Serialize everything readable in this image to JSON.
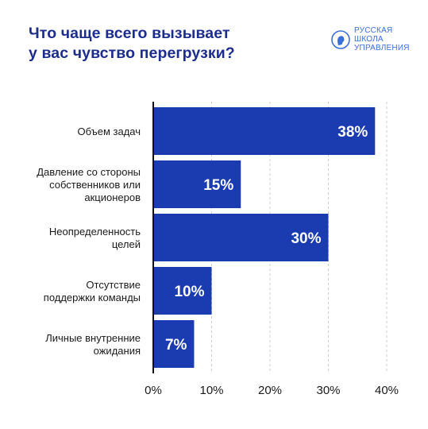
{
  "header": {
    "title_line1": "Что чаще всего вызывает",
    "title_line2": "у вас чувство перегрузки?"
  },
  "brand": {
    "line1": "РУССКАЯ",
    "line2": "ШКОЛА",
    "line3": "УПРАВЛЕНИЯ",
    "logo_icon": "profile-head-icon"
  },
  "colors": {
    "bar": "#1a3cb0",
    "title": "#1c2d8c",
    "grid": "#cfcfcf",
    "axis": "#111111"
  },
  "chart_data": {
    "type": "bar",
    "orientation": "horizontal",
    "title": "Что чаще всего вызывает у вас чувство перегрузки?",
    "categories": [
      [
        "Объем задач"
      ],
      [
        "Давление со стороны",
        "собственников или",
        "акционеров"
      ],
      [
        "Неопределенность",
        "целей"
      ],
      [
        "Отсутствие",
        "поддержки команды"
      ],
      [
        "Личные внутренние",
        "ожидания"
      ]
    ],
    "values": [
      38,
      15,
      30,
      10,
      7
    ],
    "value_labels": [
      "38%",
      "15%",
      "30%",
      "10%",
      "7%"
    ],
    "xlim": [
      0,
      40
    ],
    "x_ticks": [
      "0%",
      "10%",
      "20%",
      "30%",
      "40%"
    ],
    "grid": true,
    "grid_style": "dashed vertical"
  }
}
